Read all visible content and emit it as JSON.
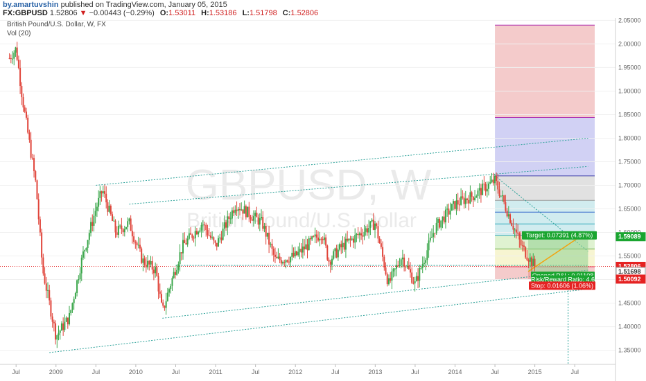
{
  "header": {
    "author": "by.amartuvshin",
    "published": "published on TradingView.com, January 05, 2015",
    "symbol": "FX:GBPUSD",
    "last": "1.52806",
    "arrow": "▼",
    "change": "−0.00443 (−0.29%)",
    "o_label": "O:",
    "o_value": "1.53011",
    "h_label": "H:",
    "h_value": "1.53186",
    "l_label": "L:",
    "l_value": "1.51798",
    "c_label": "C:",
    "c_value": "1.52806"
  },
  "legend": {
    "title": "British Pound/U.S. Dollar, W, FX",
    "volume": "Vol (20)"
  },
  "watermark": {
    "symbol": "GBPUSD, W",
    "name": "British Pound/U.S. Dollar"
  },
  "colors": {
    "up": "#3aa64a",
    "down": "#e0443a",
    "trendline": "#2aa198",
    "target_zone": "#8fcf8f",
    "stop_zone": "#e58c8c",
    "target_label": "#1aa530",
    "stop_label": "#e52222",
    "current_label": "#e52222",
    "fib_red": "#f2c2c2",
    "fib_blue": "#c9c9f2",
    "fib_gray": "#dcdcdc",
    "fib_teal": "#c9e9ec",
    "fib_green": "#d9f0c9",
    "fib_yellow": "#f6f3c9"
  },
  "chart_data": {
    "type": "candlestick",
    "timeframe": "W",
    "x_ticks": [
      "Jul",
      "2009",
      "Jul",
      "2010",
      "Jul",
      "2011",
      "Jul",
      "2012",
      "Jul",
      "2013",
      "Jul",
      "2014",
      "Jul",
      "2015",
      "Jul"
    ],
    "y_ticks": [
      "2.05000",
      "2.00000",
      "1.95000",
      "1.90000",
      "1.85000",
      "1.80000",
      "1.75000",
      "1.70000",
      "1.65000",
      "1.60000",
      "1.55000",
      "1.50000",
      "1.45000",
      "1.40000",
      "1.35000"
    ],
    "ylim": [
      1.32,
      2.055
    ],
    "price_path": [
      [
        "2008-06",
        1.97
      ],
      [
        "2008-07",
        1.99
      ],
      [
        "2008-08",
        1.88
      ],
      [
        "2008-10",
        1.7
      ],
      [
        "2008-11",
        1.52
      ],
      [
        "2009-01",
        1.38
      ],
      [
        "2009-03",
        1.42
      ],
      [
        "2009-05",
        1.55
      ],
      [
        "2009-07",
        1.65
      ],
      [
        "2009-08",
        1.69
      ],
      [
        "2009-10",
        1.6
      ],
      [
        "2009-12",
        1.62
      ],
      [
        "2010-02",
        1.54
      ],
      [
        "2010-04",
        1.52
      ],
      [
        "2010-05",
        1.43
      ],
      [
        "2010-06",
        1.48
      ],
      [
        "2010-08",
        1.57
      ],
      [
        "2010-11",
        1.62
      ],
      [
        "2011-01",
        1.57
      ],
      [
        "2011-04",
        1.66
      ],
      [
        "2011-08",
        1.62
      ],
      [
        "2011-10",
        1.54
      ],
      [
        "2012-01",
        1.55
      ],
      [
        "2012-05",
        1.6
      ],
      [
        "2012-06",
        1.54
      ],
      [
        "2012-08",
        1.57
      ],
      [
        "2013-01",
        1.62
      ],
      [
        "2013-03",
        1.49
      ],
      [
        "2013-05",
        1.55
      ],
      [
        "2013-07",
        1.49
      ],
      [
        "2013-10",
        1.61
      ],
      [
        "2014-01",
        1.66
      ],
      [
        "2014-04",
        1.68
      ],
      [
        "2014-07",
        1.71
      ],
      [
        "2014-09",
        1.64
      ],
      [
        "2014-11",
        1.57
      ],
      [
        "2015-01",
        1.528
      ]
    ],
    "price_labels": [
      {
        "text": "1.59089",
        "value": 1.59089,
        "color": "#1aa530"
      },
      {
        "text": "1.52806",
        "value": 1.52806,
        "color": "#e52222"
      },
      {
        "text": "1.51698",
        "value": 1.51698,
        "color": "#ffffff"
      },
      {
        "text": "1.50092",
        "value": 1.50092,
        "color": "#e52222"
      }
    ],
    "trendlines": [
      {
        "from": [
          "2008-12",
          1.345
        ],
        "to": [
          "2015-09",
          1.48
        ]
      },
      {
        "from": [
          "2010-05",
          1.418
        ],
        "to": [
          "2015-09",
          1.52
        ]
      },
      {
        "from": [
          "2009-07",
          1.7
        ],
        "to": [
          "2015-09",
          1.8
        ]
      },
      {
        "from": [
          "2009-12",
          1.66
        ],
        "to": [
          "2015-09",
          1.74
        ]
      },
      {
        "from": [
          "2014-07",
          1.72
        ],
        "to": [
          "2015-09",
          1.56
        ]
      },
      {
        "from": [
          "2010-07",
          1.53
        ],
        "to": [
          "2015-09",
          1.53
        ]
      }
    ],
    "position": {
      "target_text": "Target: 0.07391 (4.87%)",
      "stop_text": "Stop: 0.01606 (1.06%)",
      "pnl_text": "Opened P&L: 0.01108",
      "rr_text": "Risk/Reward Ratio: 4.6",
      "entry": 1.51698,
      "target": 1.59089,
      "stop": 1.50092,
      "start": "2014-12",
      "end": "2015-09"
    },
    "fib_levels": [
      1.5,
      1.527,
      1.565,
      1.594,
      1.618,
      1.643,
      1.668,
      1.72,
      1.844,
      2.04
    ],
    "fib_start": "2014-07",
    "fib_end": "2015-10"
  }
}
